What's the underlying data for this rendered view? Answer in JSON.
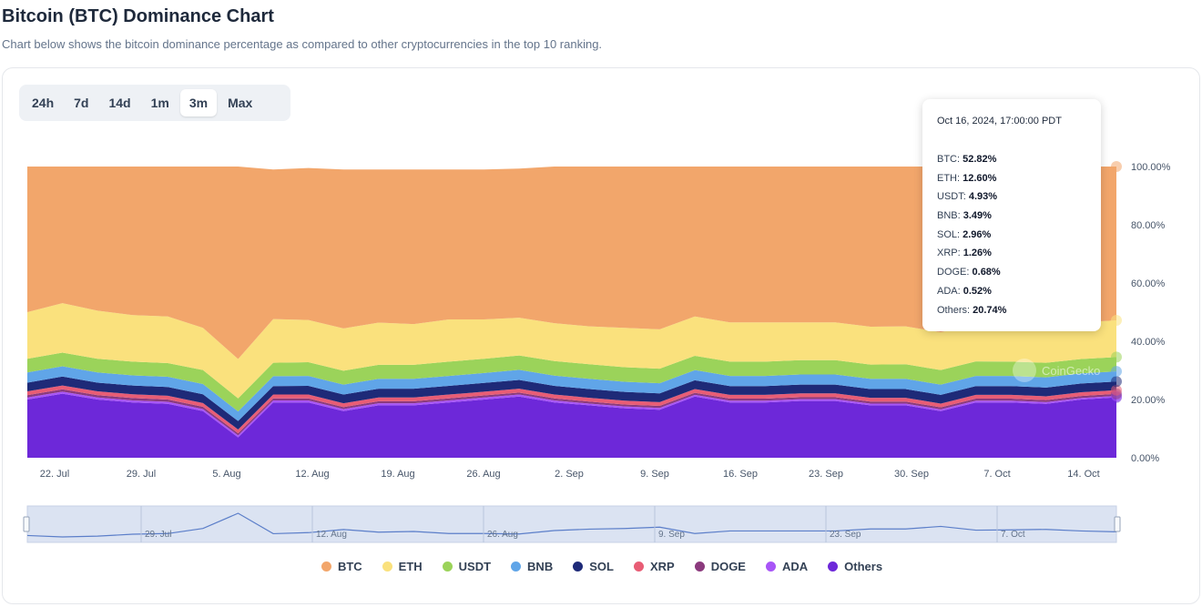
{
  "header": {
    "title": "Bitcoin (BTC) Dominance Chart",
    "subtitle": "Chart below shows the bitcoin dominance percentage as compared to other cryptocurrencies in the top 10 ranking."
  },
  "range_tabs": [
    {
      "label": "24h",
      "active": false
    },
    {
      "label": "7d",
      "active": false
    },
    {
      "label": "14d",
      "active": false
    },
    {
      "label": "1m",
      "active": false
    },
    {
      "label": "3m",
      "active": true
    },
    {
      "label": "Max",
      "active": false
    }
  ],
  "tooltip": {
    "title": "Oct 16, 2024, 17:00:00 PDT",
    "rows": [
      {
        "name": "BTC",
        "value": "52.82%"
      },
      {
        "name": "ETH",
        "value": "12.60%"
      },
      {
        "name": "USDT",
        "value": "4.93%"
      },
      {
        "name": "BNB",
        "value": "3.49%"
      },
      {
        "name": "SOL",
        "value": "2.96%"
      },
      {
        "name": "XRP",
        "value": "1.26%"
      },
      {
        "name": "DOGE",
        "value": "0.68%"
      },
      {
        "name": "ADA",
        "value": "0.52%"
      },
      {
        "name": "Others",
        "value": "20.74%"
      }
    ]
  },
  "watermark": "CoinGecko",
  "chart_data": {
    "type": "area",
    "stacked": true,
    "title": "Bitcoin (BTC) Dominance Chart",
    "ylim": [
      0,
      100
    ],
    "y_ticks": [
      "0.00%",
      "20.00%",
      "40.00%",
      "60.00%",
      "80.00%",
      "100.00%"
    ],
    "x_ticks": [
      "22. Jul",
      "29. Jul",
      "5. Aug",
      "12. Aug",
      "19. Aug",
      "26. Aug",
      "2. Sep",
      "9. Sep",
      "16. Sep",
      "23. Sep",
      "30. Sep",
      "7. Oct",
      "14. Oct"
    ],
    "navigator_ticks": [
      "29. Jul",
      "12. Aug",
      "26. Aug",
      "9. Sep",
      "23. Sep",
      "7. Oct"
    ],
    "x": [
      "Jul 19",
      "Jul 22",
      "Jul 25",
      "Jul 28",
      "Jul 31",
      "Aug 3",
      "Aug 5",
      "Aug 6",
      "Aug 9",
      "Aug 12",
      "Aug 15",
      "Aug 18",
      "Aug 21",
      "Aug 24",
      "Aug 27",
      "Aug 30",
      "Sep 2",
      "Sep 5",
      "Sep 8",
      "Sep 11",
      "Sep 14",
      "Sep 17",
      "Sep 20",
      "Sep 23",
      "Sep 26",
      "Sep 29",
      "Oct 2",
      "Oct 5",
      "Oct 8",
      "Oct 11",
      "Oct 14",
      "Oct 16"
    ],
    "series": [
      {
        "name": "Others",
        "color": "#6d28d9",
        "values": [
          20.0,
          22.0,
          20.0,
          19.0,
          18.5,
          16.0,
          7.0,
          19.0,
          19.0,
          16.0,
          18.0,
          18.0,
          19.0,
          20.0,
          21.0,
          19.0,
          18.0,
          17.0,
          16.5,
          21.0,
          19.0,
          19.0,
          19.5,
          19.5,
          18.0,
          18.0,
          16.0,
          19.0,
          19.0,
          18.5,
          20.0,
          20.74
        ]
      },
      {
        "name": "ADA",
        "color": "#a855f7",
        "values": [
          0.7,
          0.7,
          0.7,
          0.7,
          0.7,
          0.7,
          0.7,
          0.7,
          0.7,
          0.7,
          0.7,
          0.7,
          0.7,
          0.7,
          0.7,
          0.7,
          0.6,
          0.6,
          0.6,
          0.6,
          0.6,
          0.6,
          0.6,
          0.6,
          0.6,
          0.6,
          0.6,
          0.6,
          0.6,
          0.6,
          0.5,
          0.52
        ]
      },
      {
        "name": "DOGE",
        "color": "#8b3a7d",
        "values": [
          0.8,
          0.8,
          0.8,
          0.8,
          0.8,
          0.8,
          0.7,
          0.7,
          0.7,
          0.7,
          0.7,
          0.7,
          0.7,
          0.7,
          0.7,
          0.7,
          0.7,
          0.7,
          0.7,
          0.7,
          0.7,
          0.7,
          0.7,
          0.7,
          0.7,
          0.7,
          0.7,
          0.7,
          0.7,
          0.7,
          0.7,
          0.68
        ]
      },
      {
        "name": "XRP",
        "color": "#e85d75",
        "values": [
          1.3,
          1.3,
          1.3,
          1.3,
          1.3,
          1.3,
          1.3,
          1.3,
          1.3,
          1.3,
          1.3,
          1.3,
          1.3,
          1.3,
          1.3,
          1.3,
          1.3,
          1.3,
          1.3,
          1.3,
          1.3,
          1.3,
          1.3,
          1.3,
          1.3,
          1.3,
          1.3,
          1.3,
          1.3,
          1.3,
          1.3,
          1.26
        ]
      },
      {
        "name": "SOL",
        "color": "#1e2a78",
        "values": [
          3.0,
          3.1,
          3.0,
          3.0,
          3.0,
          3.0,
          2.9,
          2.9,
          3.0,
          3.0,
          3.0,
          3.0,
          3.0,
          3.0,
          3.0,
          3.0,
          3.0,
          3.0,
          3.0,
          3.0,
          3.0,
          3.0,
          3.0,
          3.0,
          3.0,
          3.0,
          3.0,
          3.0,
          3.0,
          3.0,
          3.0,
          2.96
        ]
      },
      {
        "name": "BNB",
        "color": "#60a5e8",
        "values": [
          3.5,
          3.5,
          3.5,
          3.5,
          3.5,
          3.5,
          3.3,
          3.4,
          3.4,
          3.4,
          3.4,
          3.4,
          3.4,
          3.4,
          3.5,
          3.5,
          3.5,
          3.5,
          3.5,
          3.5,
          3.5,
          3.5,
          3.5,
          3.5,
          3.5,
          3.5,
          3.5,
          3.5,
          3.5,
          3.5,
          3.5,
          3.49
        ]
      },
      {
        "name": "USDT",
        "color": "#9bd35a",
        "values": [
          4.7,
          4.7,
          4.7,
          4.7,
          4.7,
          4.8,
          4.5,
          4.6,
          4.7,
          4.8,
          4.8,
          4.8,
          4.9,
          4.9,
          4.9,
          5.0,
          5.0,
          5.0,
          5.0,
          4.9,
          4.9,
          4.9,
          4.9,
          4.9,
          4.9,
          5.0,
          5.0,
          5.0,
          4.9,
          5.0,
          4.9,
          4.93
        ]
      },
      {
        "name": "ETH",
        "color": "#fae17d",
        "values": [
          16.0,
          17.0,
          16.5,
          16.0,
          16.0,
          14.5,
          13.5,
          15.0,
          14.5,
          14.5,
          14.5,
          14.0,
          14.5,
          13.5,
          13.0,
          13.0,
          13.0,
          13.5,
          13.5,
          13.5,
          13.5,
          13.5,
          13.0,
          13.0,
          13.0,
          13.0,
          13.0,
          12.8,
          12.7,
          12.7,
          12.6,
          12.6
        ]
      },
      {
        "name": "BTC",
        "color": "#f2a66b",
        "values": [
          50.0,
          48.9,
          49.5,
          51.0,
          51.5,
          55.4,
          67.1,
          51.4,
          52.2,
          54.6,
          52.6,
          53.1,
          51.5,
          51.5,
          51.2,
          53.8,
          54.9,
          55.4,
          56.4,
          51.5,
          53.5,
          53.5,
          53.5,
          53.5,
          55.0,
          55.0,
          57.0,
          54.1,
          54.3,
          54.7,
          53.5,
          52.82
        ]
      }
    ],
    "legend_position": "bottom",
    "legend": [
      "BTC",
      "ETH",
      "USDT",
      "BNB",
      "SOL",
      "XRP",
      "DOGE",
      "ADA",
      "Others"
    ]
  }
}
